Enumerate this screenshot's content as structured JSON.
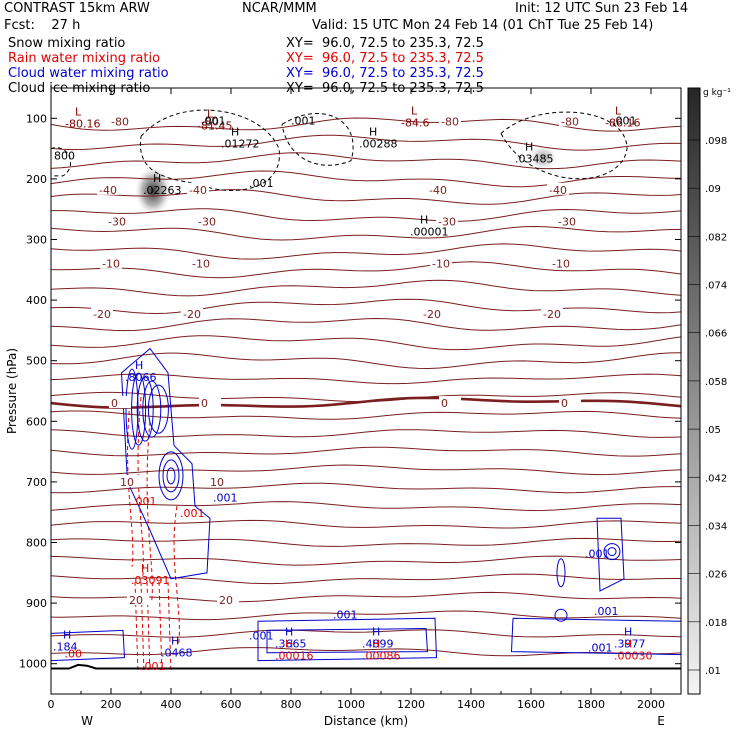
{
  "header": {
    "model": "CONTRAST 15km ARW",
    "center": "NCAR/MMM",
    "init": "Init: 12 UTC Sun 23 Feb 14",
    "fcst": "Fcst:    27 h",
    "valid": "Valid: 15 UTC Mon 24 Feb 14 (01 ChT Tue 25 Feb 14)"
  },
  "fields": [
    {
      "name": "Snow mixing ratio",
      "color": "#000000",
      "xy": "XY=  96.0, 72.5 to 235.3, 72.5"
    },
    {
      "name": "Rain water mixing ratio",
      "color": "#e00000",
      "xy": "XY=  96.0, 72.5 to 235.3, 72.5"
    },
    {
      "name": "Cloud water mixing ratio",
      "color": "#0000d0",
      "xy": "XY=  96.0, 72.5 to 235.3, 72.5"
    },
    {
      "name": "Cloud ice mixing ratio",
      "color": "#000000",
      "xy": "XY=  96.0, 72.5 to 235.3, 72.5"
    }
  ],
  "chart_data": {
    "type": "contour cross-section",
    "xlabel": "Distance (km)",
    "ylabel": "Pressure (hPa)",
    "xlim": [
      0,
      2100
    ],
    "ylim": [
      1050,
      50
    ],
    "x_ticks": [
      "0",
      "200",
      "400",
      "600",
      "800",
      "1000",
      "1200",
      "1400",
      "1600",
      "1800",
      "2000"
    ],
    "y_ticks": [
      "100",
      "200",
      "300",
      "400",
      "500",
      "600",
      "700",
      "800",
      "900",
      "1000"
    ],
    "x_end_labels": {
      "left": "W",
      "right": "E"
    },
    "colorbar": {
      "unit": "g kg⁻¹",
      "labels": [
        ".098",
        ".09",
        ".082",
        ".074",
        ".066",
        ".058",
        ".05",
        ".042",
        ".034",
        ".026",
        ".018",
        ".01"
      ]
    },
    "temperature_contours_degC": [
      {
        "value": 0,
        "p": 570,
        "label": "0"
      },
      {
        "value": -10,
        "p": 340,
        "label": "-10"
      },
      {
        "value": -20,
        "p": 423,
        "label": "-20"
      },
      {
        "value": -30,
        "p": 270,
        "label": "-30"
      },
      {
        "value": -40,
        "p": 218,
        "label": "-40"
      },
      {
        "value": -80,
        "p": 105,
        "label": "-80"
      },
      {
        "value": 10,
        "p": 700,
        "label": "10"
      },
      {
        "value": 20,
        "p": 895,
        "label": "20"
      }
    ],
    "extrema_labels": [
      {
        "kind": "L",
        "value": "-80.16",
        "x": 80,
        "p": 112,
        "color": "#800000"
      },
      {
        "kind": "L",
        "value": "-81.45",
        "x": 520,
        "p": 115,
        "color": "#800000"
      },
      {
        "kind": "L",
        "value": "-84.6",
        "x": 1200,
        "p": 110,
        "color": "#800000"
      },
      {
        "kind": "L",
        "value": "-86.16",
        "x": 1880,
        "p": 110,
        "color": "#800000"
      },
      {
        "kind": "H",
        "value": ".01272",
        "x": 600,
        "p": 145,
        "color": "#000000"
      },
      {
        "kind": "H",
        "value": ".00288",
        "x": 1060,
        "p": 145,
        "color": "#000000"
      },
      {
        "kind": "H",
        "value": ".03485",
        "x": 1580,
        "p": 170,
        "color": "#000000"
      },
      {
        "kind": "H",
        "value": ".02263",
        "x": 340,
        "p": 222,
        "color": "#000000"
      },
      {
        "kind": "H",
        "value": ".00001",
        "x": 1230,
        "p": 290,
        "color": "#000000"
      },
      {
        "kind": "H",
        "value": ".8066",
        "x": 280,
        "p": 530,
        "color": "#0000d0"
      },
      {
        "kind": "H",
        "value": ".03091",
        "x": 300,
        "p": 865,
        "color": "#e00000"
      },
      {
        "kind": "H",
        "value": ".184",
        "x": 40,
        "p": 975,
        "color": "#0000d0"
      },
      {
        "kind": "H",
        "value": ".0468",
        "x": 400,
        "p": 985,
        "color": "#0000d0"
      },
      {
        "kind": "H",
        "value": ".3665",
        "x": 780,
        "p": 970,
        "color": "#0000d0"
      },
      {
        "kind": "H",
        "value": ".00016",
        "x": 780,
        "p": 990,
        "color": "#e00000"
      },
      {
        "kind": "H",
        "value": ".4899",
        "x": 1070,
        "p": 970,
        "color": "#0000d0"
      },
      {
        "kind": "H",
        "value": ".00086",
        "x": 1070,
        "p": 990,
        "color": "#e00000"
      },
      {
        "kind": "H",
        "value": ".3977",
        "x": 1910,
        "p": 970,
        "color": "#0000d0"
      },
      {
        "kind": "H",
        "value": ".00030",
        "x": 1910,
        "p": 990,
        "color": "#e00000"
      }
    ],
    "contour_labels": [
      {
        "text": ".001",
        "x": 500,
        "p": 110,
        "color": "#000000"
      },
      {
        "text": ".001",
        "x": 800,
        "p": 110,
        "color": "#000000"
      },
      {
        "text": ".001",
        "x": 660,
        "p": 213,
        "color": "#000000"
      },
      {
        "text": ".001",
        "x": 1870,
        "p": 110,
        "color": "#000000"
      },
      {
        "text": "800",
        "x": 10,
        "p": 168,
        "color": "#000000"
      },
      {
        "text": ".001",
        "x": 270,
        "p": 738,
        "color": "#e00000"
      },
      {
        "text": ".001",
        "x": 430,
        "p": 758,
        "color": "#e00000"
      },
      {
        "text": ".001",
        "x": 540,
        "p": 732,
        "color": "#0000d0"
      },
      {
        "text": ".001",
        "x": 660,
        "p": 960,
        "color": "#0000d0"
      },
      {
        "text": ".001",
        "x": 940,
        "p": 925,
        "color": "#0000d0"
      },
      {
        "text": ".001",
        "x": 1780,
        "p": 825,
        "color": "#0000d0"
      },
      {
        "text": ".001",
        "x": 1810,
        "p": 920,
        "color": "#0000d0"
      },
      {
        "text": ".001",
        "x": 1790,
        "p": 980,
        "color": "#0000d0"
      },
      {
        "text": ".001",
        "x": 300,
        "p": 1010,
        "color": "#e00000"
      },
      {
        "text": ".00",
        "x": 45,
        "p": 990,
        "color": "#e00000"
      }
    ],
    "surface_pressure_hPa": 1008
  }
}
